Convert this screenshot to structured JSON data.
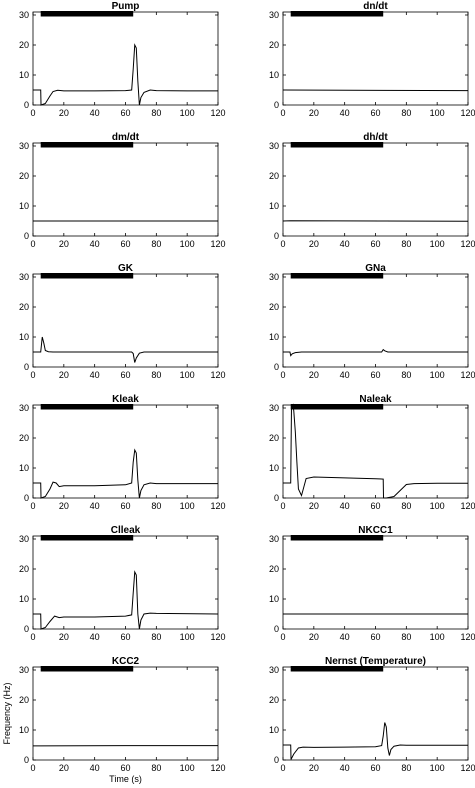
{
  "chart_data": {
    "type": "line",
    "xlabel": "Time (s)",
    "ylabel": "Frequency (Hz)",
    "xlim": [
      0,
      120
    ],
    "ylim": [
      0,
      31
    ],
    "xticks": [
      0,
      20,
      40,
      60,
      80,
      100,
      120
    ],
    "yticks": [
      0,
      10,
      20,
      30
    ],
    "stimulus_bar": {
      "start": 5,
      "end": 65,
      "level": 31
    },
    "panels": [
      {
        "title": "Pump",
        "x": [
          0,
          5,
          5.2,
          8,
          11,
          13,
          16,
          20,
          40,
          60,
          64,
          65,
          66,
          67,
          68,
          69,
          70,
          72,
          76,
          80,
          100,
          120
        ],
        "y": [
          5,
          5,
          0,
          0.5,
          3,
          4.5,
          4.9,
          4.7,
          4.7,
          4.8,
          5,
          12,
          20,
          19,
          8,
          0,
          2.5,
          4.2,
          5,
          4.8,
          4.7,
          4.7
        ]
      },
      {
        "title": "dn/dt",
        "x": [
          0,
          120
        ],
        "y": [
          5,
          4.8
        ]
      },
      {
        "title": "dm/dt",
        "x": [
          0,
          120
        ],
        "y": [
          5,
          5
        ]
      },
      {
        "title": "dh/dt",
        "x": [
          0,
          5,
          65,
          120
        ],
        "y": [
          5,
          5.1,
          5,
          4.9
        ]
      },
      {
        "title": "GK",
        "x": [
          0,
          5,
          6,
          7,
          8,
          10,
          13,
          20,
          40,
          60,
          64,
          65,
          66,
          67,
          69,
          72,
          80,
          120
        ],
        "y": [
          5,
          5,
          10,
          8,
          5.5,
          5.1,
          5,
          5,
          5,
          5,
          5,
          4.5,
          1.5,
          3,
          4.6,
          5,
          5,
          5
        ]
      },
      {
        "title": "GNa",
        "x": [
          0,
          4.5,
          5,
          6,
          8,
          12,
          20,
          40,
          60,
          64,
          65,
          66,
          68,
          72,
          120
        ],
        "y": [
          5,
          5,
          3.8,
          4.4,
          4.8,
          5,
          5,
          5,
          5,
          5,
          5.8,
          5.4,
          5,
          5,
          5
        ]
      },
      {
        "title": "Kleak",
        "x": [
          0,
          5,
          5.2,
          8,
          11,
          13,
          15,
          17,
          20,
          40,
          60,
          64,
          65,
          66,
          67,
          68,
          69,
          70,
          72,
          76,
          80,
          120
        ],
        "y": [
          5,
          5,
          0,
          0.5,
          3,
          5.3,
          5,
          3.8,
          4.1,
          4.1,
          4.4,
          5,
          12,
          16,
          15,
          6,
          0,
          2.5,
          4.4,
          5,
          4.8,
          4.8
        ]
      },
      {
        "title": "Naleak",
        "x": [
          0,
          5,
          5.5,
          6.5,
          7,
          8,
          9,
          10,
          12,
          15,
          20,
          40,
          60,
          65,
          65.2,
          67,
          72,
          76,
          80,
          85,
          100,
          120
        ],
        "y": [
          5,
          5,
          30,
          31,
          29,
          22,
          12,
          3,
          0.8,
          6.5,
          7,
          6.7,
          6.4,
          6.3,
          0,
          0,
          0.5,
          2.5,
          4.5,
          4.8,
          4.9,
          4.9
        ]
      },
      {
        "title": "Clleak",
        "x": [
          0,
          5,
          5.2,
          8,
          11,
          14,
          17,
          20,
          40,
          60,
          64,
          65,
          66,
          67,
          68,
          69,
          70,
          72,
          76,
          80,
          120
        ],
        "y": [
          5,
          5,
          0,
          0.5,
          2.5,
          4.3,
          3.8,
          4,
          4,
          4.3,
          4.7,
          12,
          19,
          18,
          5,
          0,
          3,
          5,
          5.3,
          5.2,
          5
        ]
      },
      {
        "title": "NKCC1",
        "x": [
          0,
          120
        ],
        "y": [
          5,
          5
        ]
      },
      {
        "title": "KCC2",
        "x": [
          0,
          5,
          60,
          120
        ],
        "y": [
          4.7,
          4.7,
          4.8,
          4.8
        ]
      },
      {
        "title": "Nernst (Temperature)",
        "x": [
          0,
          5,
          5.2,
          7,
          10,
          13,
          20,
          40,
          60,
          64,
          65,
          66,
          67,
          68,
          69,
          70,
          72,
          76,
          80,
          120
        ],
        "y": [
          5,
          5,
          0.2,
          2,
          4,
          4.3,
          4.2,
          4.3,
          4.4,
          4.8,
          8,
          12.5,
          11,
          4,
          1.5,
          3.5,
          4.6,
          5,
          4.9,
          4.9
        ]
      }
    ]
  }
}
